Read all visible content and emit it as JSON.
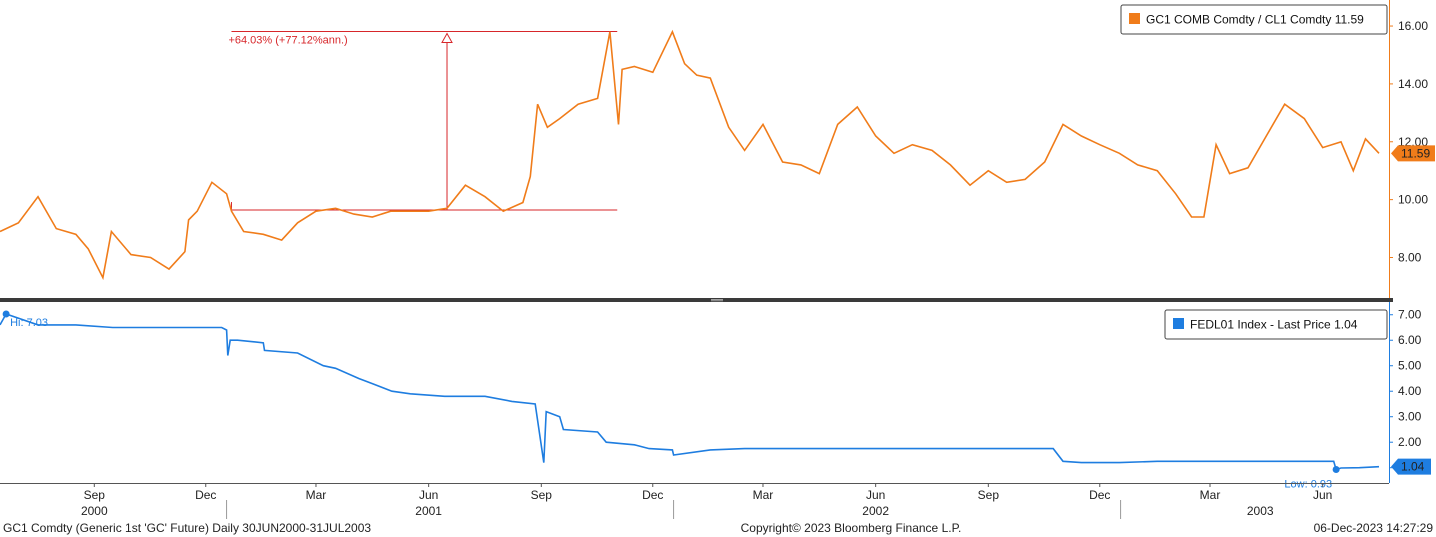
{
  "chart_data": [
    {
      "type": "line",
      "x_range": [
        "2000-06-30",
        "2003-07-31"
      ],
      "ylim": [
        6.6,
        16.9
      ],
      "y_ticks": [
        8,
        10,
        12,
        14,
        16
      ],
      "y_tick_labels": [
        "8.00",
        "10.00",
        "12.00",
        "14.00",
        "16.00"
      ],
      "y_axis_side": "right",
      "grid": false,
      "legend": {
        "text": "GC1 COMB Comdty / CL1 Comdty 11.59",
        "position": "top-right"
      },
      "last_value_label": "11.59",
      "colors": {
        "series": "#f07c1a",
        "annotation": "#d7262a"
      },
      "series": [
        {
          "name": "GC1 COMB Comdty / CL1 Comdty",
          "x": [
            "2000-06-30",
            "2000-07-15",
            "2000-07-31",
            "2000-08-15",
            "2000-08-31",
            "2000-09-10",
            "2000-09-22",
            "2000-09-29",
            "2000-10-15",
            "2000-10-31",
            "2000-11-15",
            "2000-11-28",
            "2000-12-01",
            "2000-12-08",
            "2000-12-20",
            "2001-01-01",
            "2001-01-05",
            "2001-01-15",
            "2001-01-31",
            "2001-02-15",
            "2001-02-28",
            "2001-03-15",
            "2001-03-31",
            "2001-04-15",
            "2001-04-30",
            "2001-05-15",
            "2001-05-31",
            "2001-06-15",
            "2001-06-30",
            "2001-07-15",
            "2001-07-31",
            "2001-08-15",
            "2001-08-31",
            "2001-09-06",
            "2001-09-12",
            "2001-09-20",
            "2001-09-30",
            "2001-10-15",
            "2001-10-31",
            "2001-11-10",
            "2001-11-17",
            "2001-11-20",
            "2001-11-30",
            "2001-12-15",
            "2001-12-31",
            "2002-01-10",
            "2002-01-20",
            "2002-01-31",
            "2002-02-15",
            "2002-02-28",
            "2002-03-15",
            "2002-03-31",
            "2002-04-15",
            "2002-04-30",
            "2002-05-15",
            "2002-05-31",
            "2002-06-15",
            "2002-06-30",
            "2002-07-15",
            "2002-07-31",
            "2002-08-15",
            "2002-08-31",
            "2002-09-15",
            "2002-09-30",
            "2002-10-15",
            "2002-10-31",
            "2002-11-15",
            "2002-11-30",
            "2002-12-15",
            "2002-12-31",
            "2003-01-15",
            "2003-01-31",
            "2003-02-15",
            "2003-02-28",
            "2003-03-10",
            "2003-03-20",
            "2003-03-31",
            "2003-04-15",
            "2003-04-30",
            "2003-05-15",
            "2003-05-31",
            "2003-06-15",
            "2003-06-30",
            "2003-07-10",
            "2003-07-20",
            "2003-07-31"
          ],
          "values": [
            8.9,
            9.2,
            10.1,
            9.0,
            8.8,
            8.3,
            7.3,
            8.9,
            8.1,
            8.0,
            7.6,
            8.2,
            9.3,
            9.6,
            10.6,
            10.2,
            9.6,
            8.9,
            8.8,
            8.6,
            9.2,
            9.6,
            9.7,
            9.5,
            9.4,
            9.6,
            9.6,
            9.6,
            9.7,
            10.5,
            10.1,
            9.6,
            9.9,
            10.8,
            13.3,
            12.5,
            12.8,
            13.3,
            13.5,
            15.8,
            12.6,
            14.5,
            14.6,
            14.4,
            15.8,
            14.7,
            14.3,
            14.2,
            12.5,
            11.7,
            12.6,
            11.3,
            11.2,
            10.9,
            12.6,
            13.2,
            12.2,
            11.6,
            11.9,
            11.7,
            11.2,
            10.5,
            11.0,
            10.6,
            10.7,
            11.3,
            12.6,
            12.2,
            11.9,
            11.6,
            11.2,
            11.0,
            10.2,
            9.4,
            9.4,
            11.9,
            10.9,
            11.1,
            12.2,
            13.3,
            12.8,
            11.8,
            12.0,
            11.0,
            12.1,
            11.6
          ]
        }
      ],
      "annotation": {
        "label": "+64.03% (+77.12%ann.)",
        "from": {
          "x": "2001-06-30",
          "y": 9.64
        },
        "to": {
          "x": "2001-11-16",
          "y": 15.81
        },
        "line_start_x": "2001-01-05"
      }
    },
    {
      "type": "line",
      "x_range": [
        "2000-06-30",
        "2003-07-31"
      ],
      "ylim": [
        0.4,
        7.5
      ],
      "y_ticks": [
        1,
        2,
        3,
        4,
        5,
        6,
        7
      ],
      "y_tick_labels": [
        "1.00",
        "2.00",
        "3.00",
        "4.00",
        "5.00",
        "6.00",
        "7.00"
      ],
      "y_axis_side": "right",
      "grid": false,
      "legend": {
        "text": "FEDL01 Index - Last Price 1.04",
        "position": "top-right"
      },
      "last_value_label": "1.04",
      "colors": {
        "series": "#1e7de0"
      },
      "series": [
        {
          "name": "FEDL01 Index - Last Price",
          "x": [
            "2000-06-30",
            "2000-07-05",
            "2000-07-31",
            "2000-08-31",
            "2000-09-30",
            "2000-10-31",
            "2000-11-30",
            "2000-12-20",
            "2000-12-28",
            "2001-01-01",
            "2001-01-02",
            "2001-01-04",
            "2001-01-10",
            "2001-01-31",
            "2001-02-01",
            "2001-02-28",
            "2001-03-21",
            "2001-03-31",
            "2001-04-19",
            "2001-04-30",
            "2001-05-16",
            "2001-05-31",
            "2001-06-28",
            "2001-07-31",
            "2001-08-22",
            "2001-09-10",
            "2001-09-17",
            "2001-09-19",
            "2001-09-30",
            "2001-10-03",
            "2001-10-31",
            "2001-11-07",
            "2001-11-30",
            "2001-12-12",
            "2001-12-31",
            "2002-01-01",
            "2002-01-31",
            "2002-02-28",
            "2002-03-31",
            "2002-04-30",
            "2002-05-31",
            "2002-06-30",
            "2002-07-31",
            "2002-08-31",
            "2002-09-30",
            "2002-10-31",
            "2002-11-07",
            "2002-11-15",
            "2002-11-30",
            "2002-12-31",
            "2003-01-31",
            "2003-02-28",
            "2003-03-31",
            "2003-04-30",
            "2003-05-31",
            "2003-06-24",
            "2003-06-26",
            "2003-06-30",
            "2003-07-15",
            "2003-07-31"
          ],
          "values": [
            6.6,
            7.03,
            6.6,
            6.6,
            6.5,
            6.5,
            6.5,
            6.5,
            6.5,
            6.4,
            5.4,
            6.0,
            6.0,
            5.9,
            5.6,
            5.5,
            5.0,
            4.9,
            4.5,
            4.3,
            4.0,
            3.9,
            3.8,
            3.8,
            3.6,
            3.5,
            1.2,
            3.2,
            3.0,
            2.5,
            2.4,
            2.0,
            1.9,
            1.75,
            1.7,
            1.5,
            1.7,
            1.75,
            1.75,
            1.75,
            1.75,
            1.75,
            1.75,
            1.75,
            1.75,
            1.75,
            1.75,
            1.25,
            1.2,
            1.2,
            1.25,
            1.25,
            1.25,
            1.25,
            1.25,
            1.25,
            0.93,
            0.99,
            1.0,
            1.04
          ]
        }
      ],
      "annotations": [
        {
          "label": "Hi: 7.03",
          "x": "2000-07-05",
          "y": 7.03
        },
        {
          "label": "Low: 0.93",
          "x": "2003-06-26",
          "y": 0.93
        }
      ]
    }
  ],
  "x_axis": {
    "month_ticks": [
      {
        "date": "2000-06-15",
        "label": "Jun"
      },
      {
        "date": "2000-09-15",
        "label": "Sep"
      },
      {
        "date": "2000-12-15",
        "label": "Dec"
      },
      {
        "date": "2001-03-15",
        "label": "Mar"
      },
      {
        "date": "2001-06-15",
        "label": "Jun"
      },
      {
        "date": "2001-09-15",
        "label": "Sep"
      },
      {
        "date": "2001-12-15",
        "label": "Dec"
      },
      {
        "date": "2002-03-15",
        "label": "Mar"
      },
      {
        "date": "2002-06-15",
        "label": "Jun"
      },
      {
        "date": "2002-09-15",
        "label": "Sep"
      },
      {
        "date": "2002-12-15",
        "label": "Dec"
      },
      {
        "date": "2003-03-15",
        "label": "Mar"
      },
      {
        "date": "2003-06-15",
        "label": "Jun"
      }
    ],
    "year_labels": [
      {
        "date": "2000-09-15",
        "label": "2000"
      },
      {
        "date": "2001-06-15",
        "label": "2001"
      },
      {
        "date": "2002-06-15",
        "label": "2002"
      },
      {
        "date": "2003-04-25",
        "label": "2003"
      }
    ],
    "year_dividers": [
      "2001-01-01",
      "2002-01-01",
      "2003-01-01"
    ]
  },
  "footer": {
    "left": "GC1 Comdty (Generic 1st 'GC' Future)  Daily 30JUN2000-31JUL2003",
    "center": "Copyright© 2023 Bloomberg Finance L.P.",
    "right": "06-Dec-2023 14:27:29"
  }
}
